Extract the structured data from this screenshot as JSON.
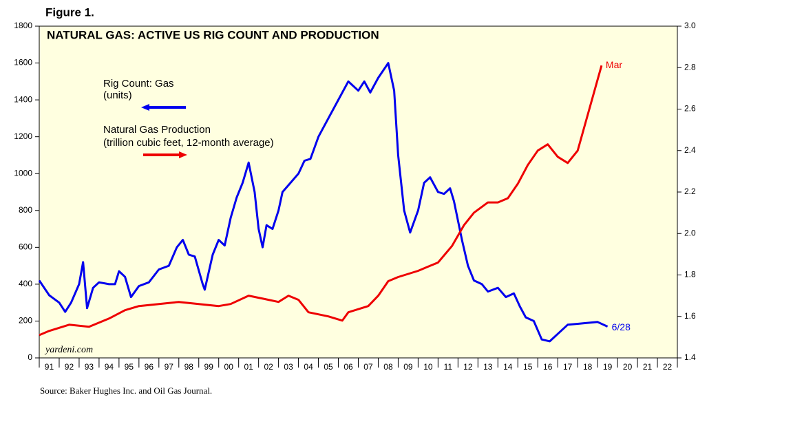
{
  "chart_data": {
    "type": "line",
    "figure_label": "Figure 1.",
    "title": "NATURAL GAS: ACTIVE US RIG COUNT AND PRODUCTION",
    "source": "Source: Baker Hughes Inc. and Oil Gas Journal.",
    "watermark": "yardeni.com",
    "xlim": [
      1991,
      2023
    ],
    "xticks": [
      1991,
      1992,
      1993,
      1994,
      1995,
      1996,
      1997,
      1998,
      1999,
      2000,
      2001,
      2002,
      2003,
      2004,
      2005,
      2006,
      2007,
      2008,
      2009,
      2010,
      2011,
      2012,
      2013,
      2014,
      2015,
      2016,
      2017,
      2018,
      2019,
      2020,
      2021,
      2022,
      2023
    ],
    "categories": [
      "91",
      "92",
      "93",
      "94",
      "95",
      "96",
      "97",
      "98",
      "99",
      "00",
      "01",
      "02",
      "03",
      "04",
      "05",
      "06",
      "07",
      "08",
      "09",
      "10",
      "11",
      "12",
      "13",
      "14",
      "15",
      "16",
      "17",
      "18",
      "19",
      "20",
      "21",
      "22"
    ],
    "ylim": [
      0,
      1800
    ],
    "yticks": [
      0,
      200,
      400,
      600,
      800,
      1000,
      1200,
      1400,
      1600,
      1800
    ],
    "y2lim": [
      1.4,
      3
    ],
    "y2ticks": [
      1.4,
      1.6,
      1.8,
      {
        "value": 2,
        "label": "2.0"
      },
      2.2,
      2.4,
      2.6,
      2.8,
      {
        "value": 3,
        "label": "3.0"
      }
    ],
    "series": [
      {
        "name": "Rig Count: Gas",
        "unit_label": "(units)",
        "end_label": "6/28",
        "color": "#0000ee",
        "x": [
          1991.0,
          1991.5,
          1992.0,
          1992.3,
          1992.6,
          1993.0,
          1993.2,
          1993.4,
          1993.7,
          1994.0,
          1994.5,
          1994.8,
          1995.0,
          1995.3,
          1995.6,
          1996.0,
          1996.5,
          1997.0,
          1997.5,
          1997.9,
          1998.2,
          1998.5,
          1998.8,
          1999.2,
          1999.3,
          1999.7,
          2000.0,
          2000.3,
          2000.6,
          2000.9,
          2001.2,
          2001.5,
          2001.8,
          2002.0,
          2002.2,
          2002.4,
          2002.7,
          2003.0,
          2003.2,
          2003.6,
          2004.0,
          2004.3,
          2004.6,
          2005.0,
          2005.5,
          2006.0,
          2006.5,
          2007.0,
          2007.3,
          2007.6,
          2008.0,
          2008.5,
          2008.8,
          2009.0,
          2009.3,
          2009.6,
          2010.0,
          2010.3,
          2010.6,
          2011.0,
          2011.3,
          2011.6,
          2011.8,
          2012.2,
          2012.5,
          2012.8,
          2013.2,
          2013.5,
          2014.0,
          2014.4,
          2014.8,
          2015.1,
          2015.4,
          2015.8,
          2016.2,
          2016.6,
          2017.0,
          2017.5,
          2018.0,
          2018.5,
          2019.0,
          2019.5
        ],
        "values": [
          420,
          340,
          300,
          250,
          300,
          400,
          520,
          270,
          380,
          410,
          400,
          400,
          470,
          440,
          330,
          390,
          410,
          480,
          500,
          600,
          640,
          560,
          550,
          400,
          370,
          560,
          640,
          610,
          760,
          870,
          950,
          1060,
          900,
          700,
          600,
          720,
          700,
          800,
          900,
          950,
          1000,
          1070,
          1080,
          1200,
          1300,
          1400,
          1500,
          1450,
          1500,
          1440,
          1520,
          1600,
          1450,
          1100,
          800,
          680,
          800,
          950,
          980,
          900,
          890,
          920,
          850,
          640,
          500,
          420,
          400,
          360,
          380,
          330,
          350,
          280,
          220,
          200,
          100,
          90,
          130,
          180,
          185,
          190,
          195,
          170
        ]
      },
      {
        "name": "Natural Gas Production",
        "unit_label": "(trillion cubic feet, 12-month average)",
        "end_label": "Mar",
        "color": "#ee0000",
        "axis": "y2",
        "x": [
          1991.0,
          1991.5,
          1992.5,
          1993.5,
          1994.5,
          1995.3,
          1996.0,
          1997.0,
          1998.0,
          1999.0,
          2000.0,
          2000.6,
          2001.5,
          2002.5,
          2003.0,
          2003.5,
          2004.0,
          2004.5,
          2005.5,
          2006.2,
          2006.5,
          2007.5,
          2008.0,
          2008.5,
          2009.0,
          2010.0,
          2010.5,
          2011.0,
          2011.7,
          2012.3,
          2012.8,
          2013.5,
          2014.0,
          2014.5,
          2015.0,
          2015.5,
          2016.0,
          2016.5,
          2017.0,
          2017.5,
          2018.0,
          2018.5,
          2019.2
        ],
        "values": [
          1.51,
          1.53,
          1.56,
          1.55,
          1.59,
          1.63,
          1.65,
          1.66,
          1.67,
          1.66,
          1.65,
          1.66,
          1.7,
          1.68,
          1.67,
          1.7,
          1.68,
          1.62,
          1.6,
          1.58,
          1.62,
          1.65,
          1.7,
          1.77,
          1.79,
          1.82,
          1.84,
          1.86,
          1.94,
          2.04,
          2.1,
          2.15,
          2.15,
          2.17,
          2.24,
          2.33,
          2.4,
          2.43,
          2.37,
          2.34,
          2.4,
          2.57,
          2.81
        ]
      }
    ]
  }
}
